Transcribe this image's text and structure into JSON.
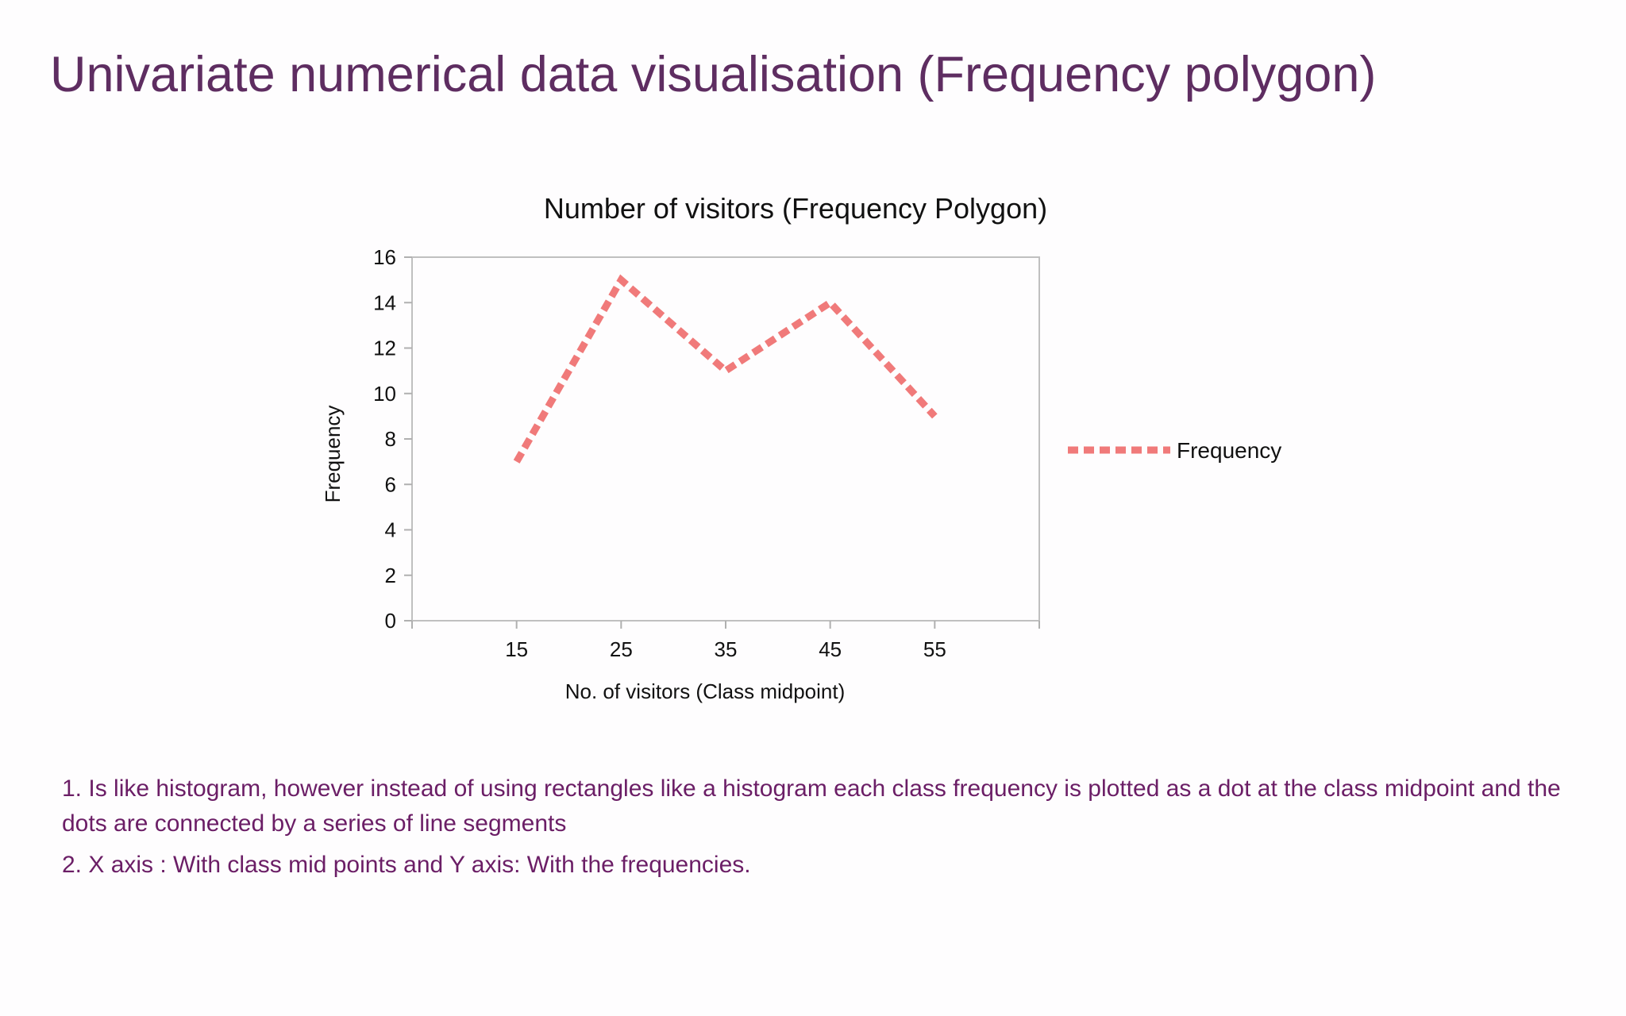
{
  "slide": {
    "title": "Univariate numerical data visualisation (Frequency polygon)"
  },
  "notes": [
    "1. Is like histogram, however instead of using rectangles like a histogram each class frequency is plotted as a dot at the class midpoint and the dots are connected by a series of line segments",
    "2. X axis : With class mid points and  Y axis: With the frequencies."
  ],
  "colors": {
    "series": "#f07a7a",
    "title": "#5e2d61",
    "notes": "#6b1e66",
    "axis": "#b0b0b0"
  },
  "chart_data": {
    "type": "line",
    "title": "Number of visitors (Frequency Polygon)",
    "xlabel": "No. of visitors (Class midpoint)",
    "ylabel": "Frequency",
    "categories": [
      "15",
      "25",
      "35",
      "45",
      "55"
    ],
    "series": [
      {
        "name": "Frequency",
        "values": [
          7,
          15,
          11,
          14,
          9
        ],
        "style": "dashed"
      }
    ],
    "ylim": [
      0,
      16
    ],
    "yticks": [
      0,
      2,
      4,
      6,
      8,
      10,
      12,
      14,
      16
    ],
    "grid": false,
    "legend": "right"
  }
}
